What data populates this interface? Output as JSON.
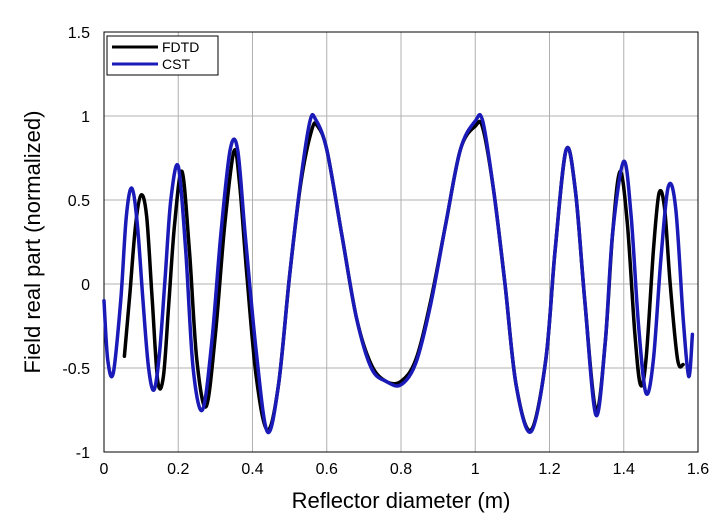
{
  "chart_data": {
    "type": "line",
    "xlabel": "Reflector diameter (m)",
    "ylabel": "Field real part (normalized)",
    "xlim": [
      0,
      1.6
    ],
    "ylim": [
      -1,
      1.5
    ],
    "xticks": [
      "0",
      "0.2",
      "0.4",
      "0.6",
      "0.8",
      "1",
      "1.2",
      "1.4",
      "1.6"
    ],
    "yticks": [
      "-1",
      "-0.5",
      "0",
      "0.5",
      "1",
      "1.5"
    ],
    "grid": true,
    "legend_position": "top-left",
    "series": [
      {
        "name": "FDTD",
        "color": "#000000",
        "x": [
          0.055,
          0.07,
          0.085,
          0.1,
          0.115,
          0.13,
          0.145,
          0.16,
          0.175,
          0.19,
          0.21,
          0.23,
          0.25,
          0.275,
          0.3,
          0.325,
          0.35,
          0.365,
          0.385,
          0.41,
          0.44,
          0.47,
          0.5,
          0.53,
          0.56,
          0.575,
          0.6,
          0.64,
          0.68,
          0.72,
          0.76,
          0.8,
          0.84,
          0.88,
          0.92,
          0.96,
          1.0,
          1.02,
          1.05,
          1.08,
          1.11,
          1.15,
          1.19,
          1.215,
          1.245,
          1.27,
          1.295,
          1.325,
          1.35,
          1.37,
          1.39,
          1.41,
          1.43,
          1.445,
          1.46,
          1.48,
          1.495,
          1.51,
          1.525,
          1.545,
          1.56
        ],
        "y": [
          -0.43,
          -0.05,
          0.35,
          0.53,
          0.4,
          -0.1,
          -0.58,
          -0.55,
          -0.1,
          0.35,
          0.67,
          0.2,
          -0.45,
          -0.73,
          -0.3,
          0.35,
          0.79,
          0.6,
          0.05,
          -0.55,
          -0.87,
          -0.6,
          0.05,
          0.6,
          0.92,
          0.94,
          0.8,
          0.3,
          -0.2,
          -0.48,
          -0.58,
          -0.58,
          -0.45,
          -0.1,
          0.35,
          0.8,
          0.94,
          0.93,
          0.55,
          0.0,
          -0.6,
          -0.87,
          -0.45,
          0.2,
          0.8,
          0.55,
          -0.1,
          -0.75,
          -0.35,
          0.3,
          0.67,
          0.35,
          -0.3,
          -0.6,
          -0.45,
          0.2,
          0.54,
          0.45,
          0.0,
          -0.45,
          -0.48
        ]
      },
      {
        "name": "CST",
        "color": "#1a1ab8",
        "x": [
          0.0,
          0.01,
          0.025,
          0.045,
          0.06,
          0.075,
          0.09,
          0.105,
          0.12,
          0.135,
          0.15,
          0.165,
          0.18,
          0.2,
          0.22,
          0.24,
          0.265,
          0.29,
          0.315,
          0.34,
          0.36,
          0.38,
          0.41,
          0.44,
          0.47,
          0.5,
          0.53,
          0.555,
          0.57,
          0.6,
          0.64,
          0.68,
          0.72,
          0.76,
          0.8,
          0.84,
          0.88,
          0.92,
          0.96,
          1.0,
          1.02,
          1.05,
          1.08,
          1.11,
          1.15,
          1.19,
          1.215,
          1.245,
          1.27,
          1.295,
          1.325,
          1.35,
          1.37,
          1.4,
          1.42,
          1.44,
          1.46,
          1.48,
          1.5,
          1.52,
          1.54,
          1.56,
          1.575,
          1.585
        ],
        "y": [
          -0.1,
          -0.45,
          -0.53,
          -0.1,
          0.4,
          0.57,
          0.35,
          -0.1,
          -0.5,
          -0.63,
          -0.4,
          0.05,
          0.5,
          0.7,
          0.2,
          -0.5,
          -0.75,
          -0.35,
          0.3,
          0.8,
          0.8,
          0.3,
          -0.4,
          -0.88,
          -0.6,
          0.05,
          0.62,
          0.97,
          0.98,
          0.8,
          0.3,
          -0.2,
          -0.5,
          -0.58,
          -0.6,
          -0.47,
          -0.12,
          0.35,
          0.8,
          0.97,
          0.97,
          0.55,
          0.0,
          -0.6,
          -0.88,
          -0.45,
          0.2,
          0.8,
          0.55,
          -0.1,
          -0.78,
          -0.35,
          0.3,
          0.73,
          0.4,
          -0.25,
          -0.65,
          -0.45,
          0.15,
          0.58,
          0.45,
          -0.2,
          -0.55,
          -0.3
        ]
      }
    ]
  }
}
